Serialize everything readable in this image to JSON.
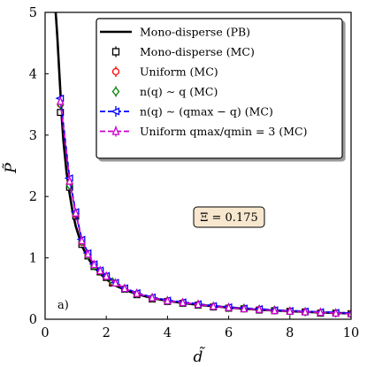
{
  "chart_data": {
    "type": "line",
    "xlabel": "d̃",
    "ylabel": "P̃",
    "xlim": [
      0,
      10
    ],
    "ylim": [
      0,
      5
    ],
    "xticks": [
      "0",
      "2",
      "4",
      "6",
      "8",
      "10"
    ],
    "yticks": [
      "0",
      "1",
      "2",
      "3",
      "4",
      "5"
    ],
    "legend_position": "top-right",
    "panel_label": "a)",
    "annotation": "Ξ = 0.175",
    "annotation_bg": "#f7e7cf",
    "series": [
      {
        "name": "Mono-disperse (PB)",
        "kind": "curve",
        "color": "#000000",
        "dashed": false,
        "x": [
          0.33,
          0.36,
          0.4,
          0.45,
          0.5,
          0.55,
          0.6,
          0.7,
          0.8,
          0.9,
          1.0,
          1.2,
          1.4,
          1.6,
          1.8,
          2.0,
          2.3,
          2.6,
          3.0,
          3.5,
          4.0,
          4.5,
          5.0,
          6.0,
          7.0,
          8.0,
          9.0,
          10.0
        ],
        "y": [
          5.1,
          4.9,
          4.6,
          4.15,
          3.7,
          3.25,
          2.9,
          2.4,
          2.05,
          1.75,
          1.52,
          1.2,
          1.0,
          0.85,
          0.74,
          0.65,
          0.55,
          0.48,
          0.41,
          0.345,
          0.3,
          0.265,
          0.235,
          0.19,
          0.155,
          0.13,
          0.11,
          0.095
        ]
      },
      {
        "name": "Mono-disperse (MC)",
        "kind": "markers",
        "marker": "square",
        "color": "#000000",
        "x": [
          0.5,
          0.8,
          1.0,
          1.2,
          1.4,
          1.6,
          1.8,
          2.0,
          2.2,
          2.6,
          3.0,
          3.5,
          4.0,
          4.5,
          5.0,
          5.5,
          6.0,
          6.5,
          7.0,
          7.5,
          8.0,
          8.5,
          9.0,
          9.5,
          10.0
        ],
        "y": [
          3.37,
          2.15,
          1.68,
          1.22,
          1.03,
          0.86,
          0.77,
          0.68,
          0.59,
          0.49,
          0.4,
          0.33,
          0.29,
          0.26,
          0.23,
          0.2,
          0.18,
          0.17,
          0.15,
          0.14,
          0.13,
          0.12,
          0.1,
          0.1,
          0.09
        ]
      },
      {
        "name": "Uniform (MC)",
        "kind": "markers",
        "marker": "circle",
        "color": "#ff0000",
        "x": [
          0.5,
          0.8,
          1.0,
          1.2,
          1.4,
          1.6,
          1.8,
          2.0,
          2.2,
          2.6,
          3.0,
          3.5,
          4.0,
          4.5,
          5.0,
          5.5,
          6.0,
          6.5,
          7.0,
          7.5,
          8.0,
          8.5,
          9.0,
          9.5,
          10.0
        ],
        "y": [
          3.5,
          2.2,
          1.7,
          1.25,
          1.05,
          0.88,
          0.78,
          0.69,
          0.6,
          0.5,
          0.41,
          0.34,
          0.3,
          0.27,
          0.24,
          0.21,
          0.19,
          0.17,
          0.16,
          0.14,
          0.13,
          0.12,
          0.11,
          0.1,
          0.09
        ]
      },
      {
        "name": "n(q) ∼ q (MC)",
        "kind": "markers",
        "marker": "diamond",
        "color": "#008000",
        "x": [
          0.5,
          0.8,
          1.0,
          1.2,
          1.4,
          1.6,
          1.8,
          2.0,
          2.2,
          2.6,
          3.0,
          3.5,
          4.0,
          4.5,
          5.0,
          5.5,
          6.0,
          6.5,
          7.0,
          7.5,
          8.0,
          8.5,
          9.0,
          9.5,
          10.0
        ],
        "y": [
          3.5,
          2.18,
          1.72,
          1.26,
          1.04,
          0.87,
          0.79,
          0.7,
          0.61,
          0.5,
          0.42,
          0.35,
          0.3,
          0.27,
          0.24,
          0.21,
          0.19,
          0.18,
          0.16,
          0.15,
          0.13,
          0.12,
          0.11,
          0.1,
          0.09
        ]
      },
      {
        "name": "n(q) ∼ (qmax − q) (MC)",
        "kind": "dashed-markers",
        "marker": "triangle-left",
        "color": "#0000ff",
        "x": [
          0.5,
          0.8,
          1.0,
          1.2,
          1.4,
          1.6,
          1.8,
          2.0,
          2.3,
          2.6,
          3.0,
          3.5,
          4.0,
          4.5,
          5.0,
          5.5,
          6.0,
          6.5,
          7.0,
          7.5,
          8.0,
          8.5,
          9.0,
          9.5,
          10.0
        ],
        "y": [
          3.6,
          2.3,
          1.75,
          1.3,
          1.08,
          0.9,
          0.8,
          0.71,
          0.6,
          0.51,
          0.43,
          0.36,
          0.31,
          0.28,
          0.25,
          0.22,
          0.2,
          0.18,
          0.17,
          0.15,
          0.14,
          0.13,
          0.12,
          0.11,
          0.1
        ]
      },
      {
        "name": "Uniform qmax/qmin = 3 (MC)",
        "kind": "dashed-markers",
        "marker": "triangle-up",
        "color": "#cc00cc",
        "x": [
          0.5,
          0.8,
          1.0,
          1.2,
          1.4,
          1.6,
          1.8,
          2.0,
          2.3,
          2.6,
          3.0,
          3.5,
          4.0,
          4.5,
          5.0,
          5.5,
          6.0,
          6.5,
          7.0,
          7.5,
          8.0,
          8.5,
          9.0,
          9.5,
          10.0
        ],
        "y": [
          3.55,
          2.25,
          1.73,
          1.28,
          1.06,
          0.89,
          0.79,
          0.7,
          0.59,
          0.5,
          0.42,
          0.35,
          0.3,
          0.27,
          0.24,
          0.21,
          0.19,
          0.17,
          0.16,
          0.14,
          0.13,
          0.12,
          0.11,
          0.1,
          0.09
        ]
      }
    ]
  }
}
